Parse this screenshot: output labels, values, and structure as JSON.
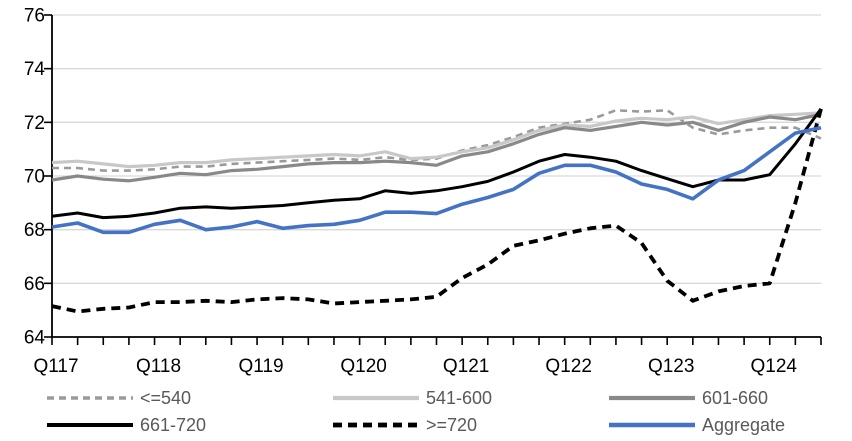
{
  "chart_data": {
    "type": "line",
    "title": "",
    "xlabel": "",
    "ylabel": "",
    "ylim": [
      64,
      76
    ],
    "y_ticks": [
      64,
      66,
      68,
      70,
      72,
      74,
      76
    ],
    "grid": "horizontal",
    "legend_position": "bottom",
    "label_every": 4,
    "x": [
      "Q117",
      "Q217",
      "Q317",
      "Q417",
      "Q118",
      "Q218",
      "Q318",
      "Q418",
      "Q119",
      "Q219",
      "Q319",
      "Q419",
      "Q120",
      "Q220",
      "Q320",
      "Q420",
      "Q121",
      "Q221",
      "Q321",
      "Q421",
      "Q122",
      "Q222",
      "Q322",
      "Q422",
      "Q123",
      "Q223",
      "Q323",
      "Q423",
      "Q124",
      "Q224",
      "Q324"
    ],
    "x_axis_labels": [
      "Q117",
      "Q118",
      "Q119",
      "Q120",
      "Q121",
      "Q122",
      "Q123",
      "Q124"
    ],
    "colors": {
      "grid": "#d9d9d9",
      "axis": "#000000",
      "axis_text": "#000000",
      "legend_text": "#595959",
      "accent_blue": "#4472c4"
    },
    "series": [
      {
        "name": "<=540",
        "color": "#9a9a9a",
        "dash": "dashed",
        "width": 2.6,
        "values": [
          70.3,
          70.3,
          70.2,
          70.2,
          70.25,
          70.35,
          70.35,
          70.45,
          70.5,
          70.55,
          70.6,
          70.65,
          70.6,
          70.7,
          70.6,
          70.65,
          70.95,
          71.15,
          71.45,
          71.8,
          71.95,
          72.1,
          72.45,
          72.4,
          72.45,
          71.8,
          71.55,
          71.7,
          71.8,
          71.8,
          71.4
        ]
      },
      {
        "name": "541-600",
        "color": "#c8c8c8",
        "dash": "solid",
        "width": 3.2,
        "values": [
          70.5,
          70.55,
          70.45,
          70.35,
          70.4,
          70.5,
          70.5,
          70.6,
          70.65,
          70.7,
          70.75,
          70.8,
          70.75,
          70.9,
          70.65,
          70.7,
          70.9,
          71.05,
          71.35,
          71.7,
          71.9,
          71.85,
          72.05,
          72.15,
          72.1,
          72.2,
          71.95,
          72.1,
          72.25,
          72.3,
          72.35
        ]
      },
      {
        "name": "601-660",
        "color": "#898989",
        "dash": "solid",
        "width": 3.2,
        "values": [
          69.85,
          70.0,
          69.88,
          69.82,
          69.95,
          70.1,
          70.05,
          70.2,
          70.25,
          70.35,
          70.45,
          70.5,
          70.5,
          70.55,
          70.5,
          70.4,
          70.75,
          70.9,
          71.2,
          71.55,
          71.8,
          71.7,
          71.85,
          72.0,
          71.9,
          72.0,
          71.7,
          72.0,
          72.2,
          72.1,
          72.3
        ]
      },
      {
        "name": "661-720",
        "color": "#000000",
        "dash": "solid",
        "width": 3.0,
        "values": [
          68.5,
          68.62,
          68.45,
          68.5,
          68.62,
          68.8,
          68.85,
          68.8,
          68.85,
          68.9,
          69.0,
          69.1,
          69.15,
          69.45,
          69.35,
          69.45,
          69.6,
          69.8,
          70.15,
          70.55,
          70.8,
          70.7,
          70.55,
          70.2,
          69.9,
          69.6,
          69.85,
          69.85,
          70.05,
          71.2,
          72.5
        ]
      },
      {
        "name": ">=720",
        "color": "#000000",
        "dash": "dashed-bold",
        "width": 3.8,
        "values": [
          65.15,
          64.95,
          65.05,
          65.1,
          65.3,
          65.3,
          65.35,
          65.3,
          65.4,
          65.45,
          65.4,
          65.25,
          65.3,
          65.35,
          65.4,
          65.5,
          66.2,
          66.7,
          67.4,
          67.6,
          67.85,
          68.05,
          68.15,
          67.5,
          66.1,
          65.35,
          65.7,
          65.9,
          66.0,
          69.0,
          72.5
        ]
      },
      {
        "name": "Aggregate",
        "color": "#4472c4",
        "dash": "solid",
        "width": 3.6,
        "values": [
          68.1,
          68.25,
          67.9,
          67.9,
          68.2,
          68.35,
          68.0,
          68.1,
          68.3,
          68.05,
          68.15,
          68.2,
          68.35,
          68.65,
          68.65,
          68.6,
          68.95,
          69.2,
          69.5,
          70.1,
          70.4,
          70.4,
          70.15,
          69.7,
          69.5,
          69.15,
          69.85,
          70.2,
          70.9,
          71.6,
          71.8
        ]
      }
    ]
  }
}
